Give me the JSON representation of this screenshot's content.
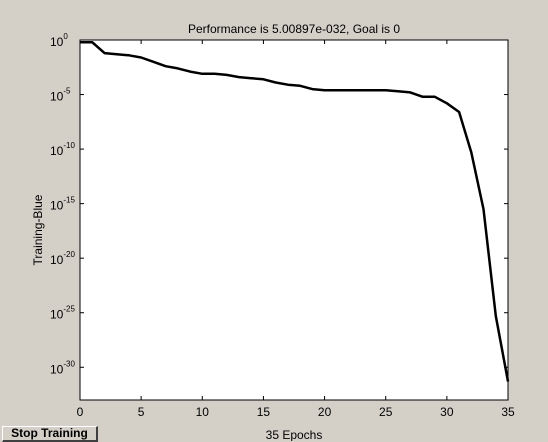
{
  "window": {
    "stop_button_label": "Stop Training"
  },
  "chart_data": {
    "type": "line",
    "title": "Performance is 5.00897e-032, Goal is 0",
    "xlabel": "35 Epochs",
    "ylabel": "Training-Blue",
    "xlim": [
      0,
      35
    ],
    "ylim_exponent": [
      -33,
      0
    ],
    "y_scale": "log",
    "grid": false,
    "x_ticks": [
      "0",
      "5",
      "10",
      "15",
      "20",
      "25",
      "30",
      "35"
    ],
    "y_ticks": [
      {
        "base": "10",
        "exp": "0"
      },
      {
        "base": "10",
        "exp": "-5"
      },
      {
        "base": "10",
        "exp": "-10"
      },
      {
        "base": "10",
        "exp": "-15"
      },
      {
        "base": "10",
        "exp": "-20"
      },
      {
        "base": "10",
        "exp": "-25"
      },
      {
        "base": "10",
        "exp": "-30"
      }
    ],
    "series": [
      {
        "color": "#000000",
        "x": [
          0,
          1,
          2,
          3,
          4,
          5,
          6,
          7,
          8,
          9,
          10,
          11,
          12,
          13,
          14,
          15,
          16,
          17,
          18,
          19,
          20,
          21,
          22,
          23,
          24,
          25,
          26,
          27,
          28,
          29,
          30,
          31,
          32,
          33,
          34,
          35
        ],
        "log10_y": [
          -0.2,
          -0.2,
          -1.2,
          -1.3,
          -1.4,
          -1.6,
          -2.0,
          -2.4,
          -2.6,
          -2.9,
          -3.1,
          -3.1,
          -3.2,
          -3.4,
          -3.5,
          -3.6,
          -3.9,
          -4.1,
          -4.2,
          -4.5,
          -4.6,
          -4.6,
          -4.6,
          -4.6,
          -4.6,
          -4.6,
          -4.7,
          -4.8,
          -5.2,
          -5.2,
          -5.8,
          -6.6,
          -10.3,
          -15.5,
          -25.3,
          -31.3
        ]
      }
    ]
  }
}
